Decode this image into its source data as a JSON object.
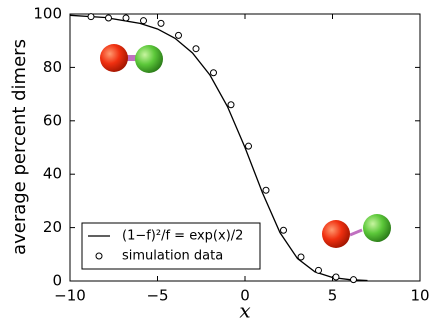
{
  "chart_data": {
    "type": "line",
    "xlabel": "x",
    "ylabel": "average percent dimers",
    "xlim": [
      -10,
      10
    ],
    "ylim": [
      0,
      100
    ],
    "xticks": [
      {
        "value": -10,
        "label": "−10"
      },
      {
        "value": -5,
        "label": "−5"
      },
      0,
      5,
      10
    ],
    "yticks": [
      0,
      20,
      40,
      60,
      80,
      100
    ],
    "grid": false,
    "legend": "lower left",
    "series": [
      {
        "name": "(1−f)²/f = exp(x)/2",
        "type": "line",
        "color": "#000000",
        "x": [
          -10,
          -8,
          -6,
          -5,
          -4,
          -3,
          -2,
          -1,
          0,
          1,
          2,
          3,
          4,
          5,
          6,
          7
        ],
        "values": [
          99.5,
          98.7,
          96.5,
          94.4,
          90.9,
          85.4,
          77.1,
          65.3,
          50,
          33.0,
          18.1,
          8.4,
          3.4,
          1.3,
          0.5,
          0.2
        ]
      },
      {
        "name": "simulation data",
        "type": "scatter",
        "color": "#000000",
        "x": [
          -8.8,
          -7.8,
          -6.8,
          -5.8,
          -4.8,
          -3.8,
          -2.8,
          -1.8,
          -0.8,
          0.2,
          1.2,
          2.2,
          3.2,
          4.2,
          5.2,
          6.2
        ],
        "values": [
          99,
          98.5,
          98.5,
          97.5,
          96.5,
          92,
          87,
          78,
          66,
          50.5,
          34,
          19,
          9,
          4,
          1.5,
          0.5
        ]
      }
    ]
  }
}
